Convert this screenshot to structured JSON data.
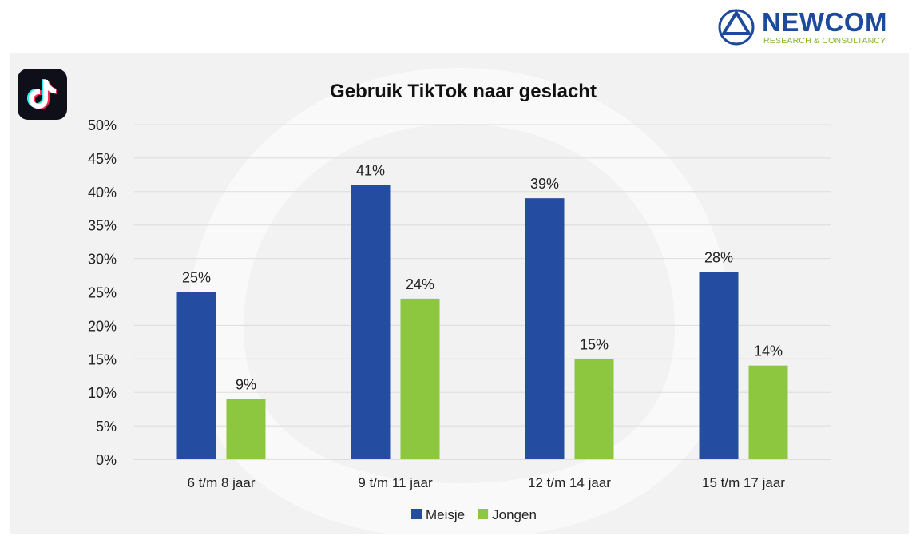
{
  "brand": {
    "name": "NEWCOM",
    "tagline": "RESEARCH & CONSULTANCY",
    "primary_color": "#1e4a9b",
    "accent_color": "#86b52b"
  },
  "app_icon": "tiktok-icon",
  "chart_data": {
    "type": "bar",
    "title": "Gebruik TikTok naar geslacht",
    "categories": [
      "6 t/m 8 jaar",
      "9 t/m 11 jaar",
      "12 t/m 14 jaar",
      "15 t/m 17 jaar"
    ],
    "series": [
      {
        "name": "Meisje",
        "color": "#244ca0",
        "values": [
          25,
          41,
          39,
          28
        ],
        "value_labels": [
          "25%",
          "41%",
          "39%",
          "28%"
        ]
      },
      {
        "name": "Jongen",
        "color": "#8dc63f",
        "values": [
          9,
          24,
          15,
          14
        ],
        "value_labels": [
          "9%",
          "24%",
          "15%",
          "14%"
        ]
      }
    ],
    "ylim": [
      0,
      50
    ],
    "yticks": [
      "0%",
      "5%",
      "10%",
      "15%",
      "20%",
      "25%",
      "30%",
      "35%",
      "40%",
      "45%",
      "50%"
    ],
    "grid": true,
    "legend_position": "bottom",
    "background": "#f2f2f2"
  }
}
